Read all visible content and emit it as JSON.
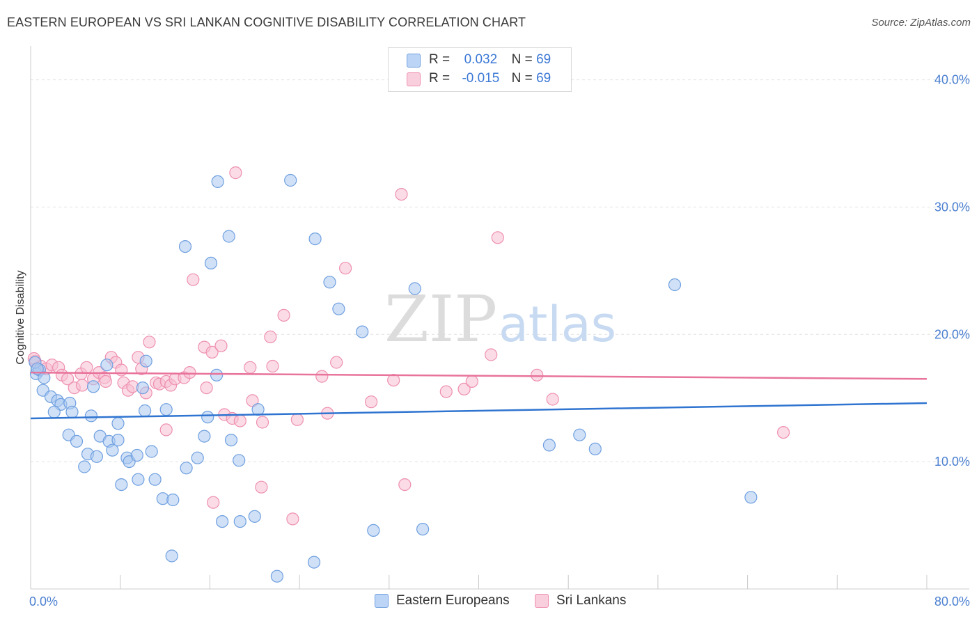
{
  "title": "EASTERN EUROPEAN VS SRI LANKAN COGNITIVE DISABILITY CORRELATION CHART",
  "source": "Source: ZipAtlas.com",
  "watermark_zip": "ZIP",
  "watermark_atlas": "atlas",
  "legend": {
    "r_label": "R =",
    "n_label": "N =",
    "rows": [
      {
        "r": "0.032",
        "n": "69"
      },
      {
        "r": "-0.015",
        "n": "69"
      }
    ]
  },
  "colors": {
    "blue_fill": "#a9c8f0",
    "blue_stroke": "#6f9fe0",
    "blue_line": "#2f74d0",
    "pink_fill": "#f7bfd2",
    "pink_stroke": "#ee8fb0",
    "pink_line": "#e8739b",
    "tick_text": "#4a7fd0",
    "grid": "#e2e2e2"
  },
  "chart_data": {
    "type": "scatter",
    "title": "EASTERN EUROPEAN VS SRI LANKAN COGNITIVE DISABILITY CORRELATION CHART",
    "xlabel": "",
    "ylabel": "Cognitive Disability",
    "xlim": [
      0,
      80
    ],
    "ylim": [
      0,
      42
    ],
    "x_tick_labels": [
      "0.0%",
      "80.0%"
    ],
    "y_ticks": [
      10,
      20,
      30,
      40
    ],
    "y_tick_labels": [
      "10.0%",
      "20.0%",
      "30.0%",
      "40.0%"
    ],
    "grid": true,
    "legend_position": "top-center",
    "series": [
      {
        "name": "Eastern Europeans",
        "color": "#a9c8f0",
        "trend": [
          [
            0,
            13.4
          ],
          [
            80,
            14.6
          ]
        ],
        "points": [
          [
            0.5,
            16.9
          ],
          [
            0.8,
            17.2
          ],
          [
            1.2,
            16.6
          ],
          [
            1.1,
            15.6
          ],
          [
            1.8,
            15.1
          ],
          [
            2.4,
            14.8
          ],
          [
            2.7,
            14.5
          ],
          [
            3.5,
            14.6
          ],
          [
            2.1,
            13.9
          ],
          [
            3.7,
            13.9
          ],
          [
            5.4,
            13.6
          ],
          [
            3.4,
            12.1
          ],
          [
            4.1,
            11.6
          ],
          [
            6.2,
            12.0
          ],
          [
            7.0,
            11.6
          ],
          [
            7.8,
            13.0
          ],
          [
            7.8,
            11.7
          ],
          [
            5.1,
            10.6
          ],
          [
            5.9,
            10.4
          ],
          [
            7.3,
            10.9
          ],
          [
            8.6,
            10.3
          ],
          [
            8.8,
            10.0
          ],
          [
            9.5,
            10.5
          ],
          [
            10.8,
            10.8
          ],
          [
            4.8,
            9.6
          ],
          [
            8.1,
            8.2
          ],
          [
            9.6,
            8.6
          ],
          [
            11.1,
            8.6
          ],
          [
            11.8,
            7.1
          ],
          [
            12.7,
            7.0
          ],
          [
            13.9,
            9.5
          ],
          [
            14.9,
            10.3
          ],
          [
            15.5,
            12.0
          ],
          [
            17.9,
            11.7
          ],
          [
            18.6,
            10.1
          ],
          [
            10.2,
            14.0
          ],
          [
            12.1,
            14.1
          ],
          [
            15.8,
            13.5
          ],
          [
            20.3,
            14.1
          ],
          [
            6.8,
            17.6
          ],
          [
            10.3,
            17.9
          ],
          [
            10.0,
            15.8
          ],
          [
            5.6,
            15.9
          ],
          [
            16.6,
            16.8
          ],
          [
            13.8,
            26.9
          ],
          [
            16.1,
            25.6
          ],
          [
            17.7,
            27.7
          ],
          [
            16.7,
            32.0
          ],
          [
            23.2,
            32.1
          ],
          [
            25.4,
            27.5
          ],
          [
            26.7,
            24.1
          ],
          [
            27.5,
            22.0
          ],
          [
            29.6,
            20.2
          ],
          [
            34.3,
            23.6
          ],
          [
            57.5,
            23.9
          ],
          [
            12.6,
            2.6
          ],
          [
            17.1,
            5.3
          ],
          [
            18.7,
            5.3
          ],
          [
            20.0,
            5.7
          ],
          [
            22.0,
            1.0
          ],
          [
            25.3,
            2.1
          ],
          [
            30.6,
            4.6
          ],
          [
            35.0,
            4.7
          ],
          [
            46.3,
            11.3
          ],
          [
            49.0,
            12.1
          ],
          [
            50.4,
            11.0
          ],
          [
            64.3,
            7.2
          ],
          [
            0.4,
            17.8
          ],
          [
            0.6,
            17.3
          ]
        ]
      },
      {
        "name": "Sri Lankans",
        "color": "#f7bfd2",
        "trend": [
          [
            0,
            17.0
          ],
          [
            80,
            16.5
          ]
        ],
        "points": [
          [
            0.4,
            17.9
          ],
          [
            0.9,
            17.5
          ],
          [
            1.4,
            17.3
          ],
          [
            1.9,
            17.6
          ],
          [
            2.5,
            17.4
          ],
          [
            2.8,
            16.8
          ],
          [
            3.3,
            16.5
          ],
          [
            3.9,
            15.8
          ],
          [
            4.5,
            16.9
          ],
          [
            4.6,
            16.0
          ],
          [
            5.0,
            17.4
          ],
          [
            5.6,
            16.5
          ],
          [
            6.1,
            17.0
          ],
          [
            6.6,
            16.6
          ],
          [
            6.7,
            16.3
          ],
          [
            7.2,
            18.2
          ],
          [
            7.6,
            17.8
          ],
          [
            8.1,
            17.2
          ],
          [
            8.3,
            16.2
          ],
          [
            8.7,
            15.6
          ],
          [
            9.6,
            18.2
          ],
          [
            9.9,
            17.3
          ],
          [
            10.3,
            15.4
          ],
          [
            10.6,
            19.4
          ],
          [
            11.2,
            16.2
          ],
          [
            11.5,
            16.1
          ],
          [
            12.1,
            16.3
          ],
          [
            12.5,
            16.0
          ],
          [
            12.9,
            16.5
          ],
          [
            13.7,
            16.6
          ],
          [
            14.2,
            17.0
          ],
          [
            15.5,
            19.0
          ],
          [
            15.7,
            15.8
          ],
          [
            16.2,
            18.6
          ],
          [
            17.0,
            19.1
          ],
          [
            17.3,
            13.7
          ],
          [
            18.0,
            13.4
          ],
          [
            18.7,
            13.2
          ],
          [
            19.6,
            17.4
          ],
          [
            19.8,
            14.8
          ],
          [
            20.7,
            13.1
          ],
          [
            21.4,
            19.8
          ],
          [
            21.6,
            17.5
          ],
          [
            22.6,
            21.5
          ],
          [
            23.4,
            5.5
          ],
          [
            23.8,
            13.3
          ],
          [
            26.0,
            16.7
          ],
          [
            26.5,
            13.8
          ],
          [
            27.3,
            17.8
          ],
          [
            28.1,
            25.2
          ],
          [
            30.4,
            14.7
          ],
          [
            32.4,
            16.4
          ],
          [
            33.1,
            31.0
          ],
          [
            33.4,
            8.2
          ],
          [
            37.1,
            15.5
          ],
          [
            38.7,
            15.7
          ],
          [
            39.4,
            16.3
          ],
          [
            41.1,
            18.4
          ],
          [
            41.7,
            27.6
          ],
          [
            45.2,
            16.8
          ],
          [
            46.6,
            14.9
          ],
          [
            67.2,
            12.3
          ],
          [
            14.5,
            24.3
          ],
          [
            18.3,
            32.7
          ],
          [
            16.3,
            6.8
          ],
          [
            20.6,
            8.0
          ],
          [
            12.1,
            12.5
          ],
          [
            9.1,
            15.9
          ],
          [
            0.3,
            18.1
          ]
        ]
      }
    ]
  },
  "bottom_legend": [
    {
      "label": "Eastern Europeans"
    },
    {
      "label": "Sri Lankans"
    }
  ]
}
